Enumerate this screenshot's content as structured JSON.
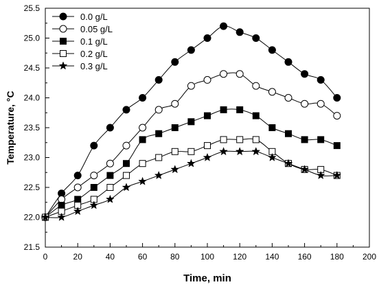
{
  "chart_data": {
    "type": "line",
    "xlabel": "Time, min",
    "ylabel": "Temperature, °C",
    "xlim": [
      0,
      200
    ],
    "ylim": [
      21.5,
      25.5
    ],
    "x_ticks": [
      "0",
      "20",
      "40",
      "60",
      "80",
      "100",
      "120",
      "140",
      "160",
      "180",
      "200"
    ],
    "y_ticks": [
      "21.5",
      "22.0",
      "22.5",
      "23.0",
      "23.5",
      "24.0",
      "24.5",
      "25.0",
      "25.5"
    ],
    "grid": false,
    "legend_position": "top-left",
    "x": [
      0,
      10,
      20,
      30,
      40,
      50,
      60,
      70,
      80,
      90,
      100,
      110,
      120,
      130,
      140,
      150,
      160,
      170,
      180
    ],
    "series": [
      {
        "name": "0.0 g/L",
        "marker": "filled-circle",
        "values": [
          22.0,
          22.4,
          22.7,
          23.2,
          23.5,
          23.8,
          24.0,
          24.3,
          24.6,
          24.8,
          25.0,
          25.2,
          25.1,
          25.0,
          24.8,
          24.6,
          24.4,
          24.3,
          24.0
        ]
      },
      {
        "name": "0.05 g/L",
        "marker": "open-circle",
        "values": [
          22.0,
          22.3,
          22.5,
          22.7,
          22.9,
          23.2,
          23.5,
          23.8,
          23.9,
          24.2,
          24.3,
          24.4,
          24.4,
          24.2,
          24.1,
          24.0,
          23.9,
          23.9,
          23.7
        ]
      },
      {
        "name": "0.1 g/L",
        "marker": "filled-square",
        "values": [
          22.0,
          22.2,
          22.3,
          22.5,
          22.7,
          22.9,
          23.3,
          23.4,
          23.5,
          23.6,
          23.7,
          23.8,
          23.8,
          23.7,
          23.5,
          23.4,
          23.3,
          23.3,
          23.2
        ]
      },
      {
        "name": "0.2 g/L",
        "marker": "open-square",
        "values": [
          22.0,
          22.1,
          22.2,
          22.3,
          22.5,
          22.7,
          22.9,
          23.0,
          23.1,
          23.1,
          23.2,
          23.3,
          23.3,
          23.3,
          23.1,
          22.9,
          22.8,
          22.8,
          22.7
        ]
      },
      {
        "name": "0.3 g/L",
        "marker": "star",
        "values": [
          22.0,
          22.0,
          22.1,
          22.2,
          22.3,
          22.5,
          22.6,
          22.7,
          22.8,
          22.9,
          23.0,
          23.1,
          23.1,
          23.1,
          23.0,
          22.9,
          22.8,
          22.7,
          22.7
        ]
      }
    ]
  }
}
